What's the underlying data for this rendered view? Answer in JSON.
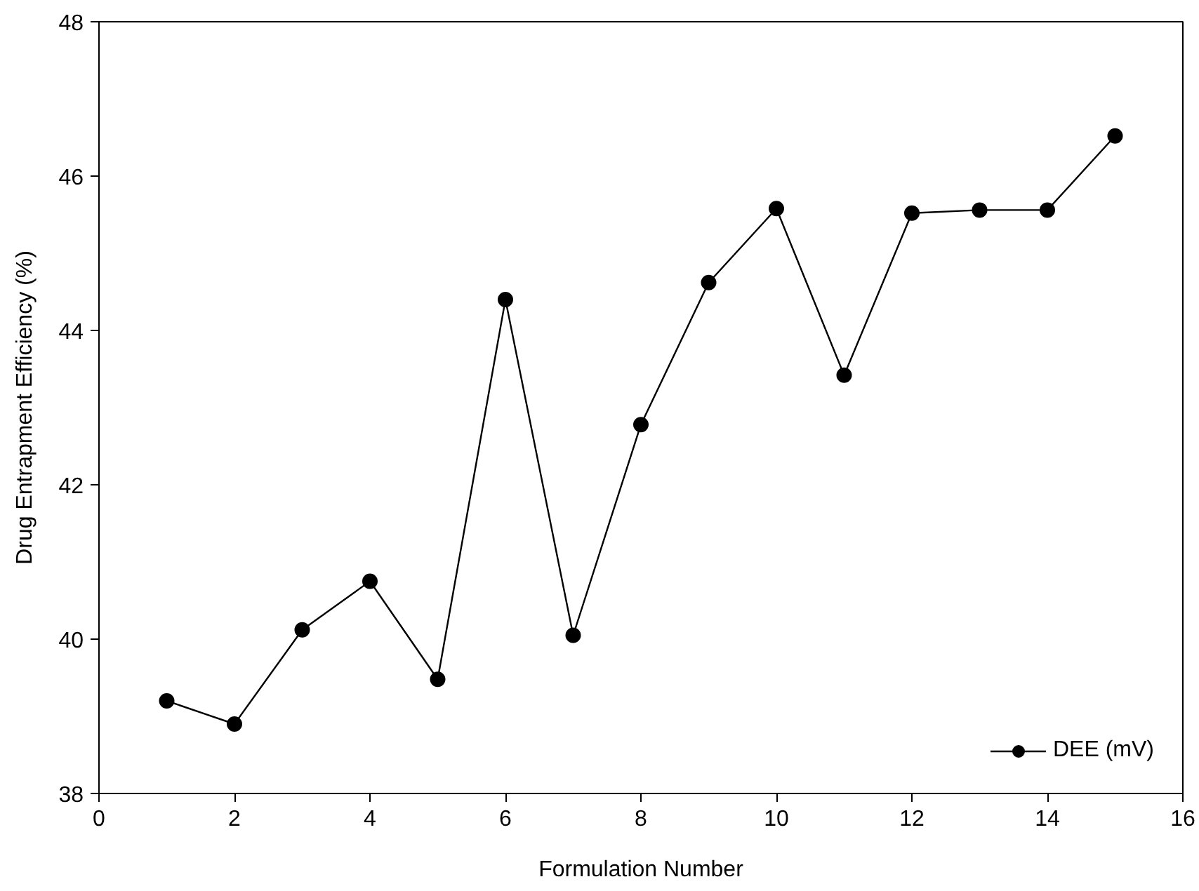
{
  "chart_data": {
    "type": "line",
    "xlabel": "Formulation Number",
    "ylabel": "Drug Entrapment Efficiency (%)",
    "x": [
      1,
      2,
      3,
      4,
      5,
      6,
      7,
      8,
      9,
      10,
      11,
      12,
      13,
      14,
      15
    ],
    "series": [
      {
        "name": "DEE (mV)",
        "color": "#000000",
        "values": [
          39.2,
          38.9,
          40.12,
          40.75,
          39.48,
          44.4,
          40.05,
          42.78,
          44.62,
          45.58,
          43.42,
          45.52,
          45.56,
          45.56,
          46.52
        ]
      }
    ],
    "xlim": [
      0,
      16
    ],
    "xticks": [
      0,
      2,
      4,
      6,
      8,
      10,
      12,
      14,
      16
    ],
    "ylim": [
      38,
      48
    ],
    "yticks": [
      38,
      40,
      42,
      44,
      46,
      48
    ],
    "grid": false,
    "legend": "bottom right",
    "marker": "circle",
    "line_style": "solid"
  }
}
